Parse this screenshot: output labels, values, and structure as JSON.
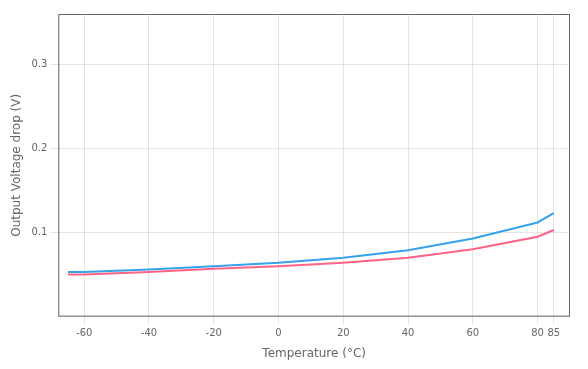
{
  "chart_data": {
    "type": "line",
    "x": [
      -65,
      -60,
      -40,
      -20,
      0,
      20,
      40,
      60,
      80,
      85
    ],
    "series": [
      {
        "values": [
          0.053,
          0.053,
          0.056,
          0.06,
          0.064,
          0.07,
          0.079,
          0.093,
          0.112,
          0.123
        ]
      },
      {
        "values": [
          0.05,
          0.05,
          0.053,
          0.057,
          0.06,
          0.064,
          0.07,
          0.08,
          0.095,
          0.103
        ]
      }
    ],
    "xlabel": "Temperature (°C)",
    "ylabel": "Output Voltage drop (V)",
    "xlim": [
      -68,
      90
    ],
    "ylim": [
      0,
      0.36
    ],
    "xticks": [
      -60,
      -40,
      -20,
      0,
      20,
      40,
      60,
      80,
      85
    ],
    "yticks": [
      0.1,
      0.2,
      0.3
    ],
    "grid": true
  }
}
